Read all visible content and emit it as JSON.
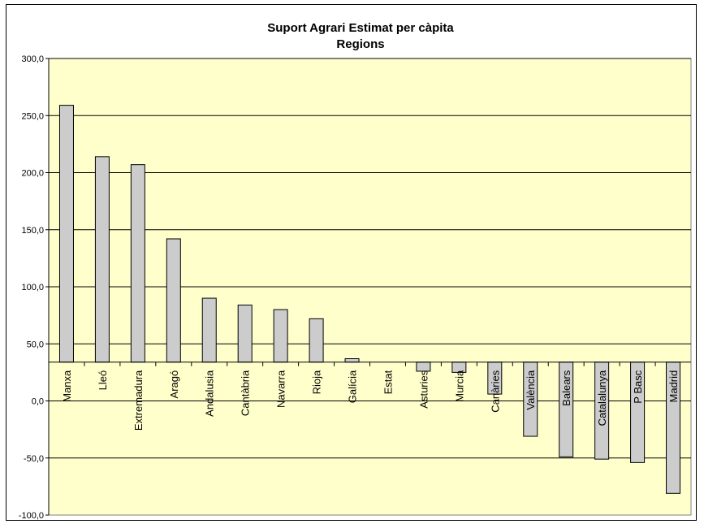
{
  "chart_data": {
    "type": "bar",
    "title": "Suport Agrari Estimat per càpita",
    "subtitle": "Regions",
    "xlabel": "",
    "ylabel": "",
    "ylim": [
      -100,
      300
    ],
    "yticks": [
      -100,
      -50,
      0,
      50,
      100,
      150,
      200,
      250,
      300
    ],
    "ytick_labels": [
      "-100,0",
      "-50,0",
      "0,0",
      "50,0",
      "100,0",
      "150,0",
      "200,0",
      "250,0",
      "300,0"
    ],
    "grid": true,
    "categories": [
      "Manxa",
      "Lleó",
      "Extremadura",
      "Aragó",
      "Andalusia",
      "Cantàbria",
      "Navarra",
      "Rioja",
      "Galícia",
      "Estat",
      "Asturies",
      "Murcia",
      "Canàries",
      "València",
      "Balears",
      "Catalalunya",
      "P Basc",
      "Madrid"
    ],
    "values": [
      225,
      180,
      173,
      108,
      56,
      50,
      46,
      38,
      3,
      0,
      -8,
      -9,
      -28,
      -65,
      -83,
      -85,
      -88,
      -115
    ],
    "colors": {
      "plot_bg": "#ffffcc",
      "bar_fill": "#cccccc",
      "bar_stroke": "#000000",
      "grid": "#000000"
    }
  }
}
